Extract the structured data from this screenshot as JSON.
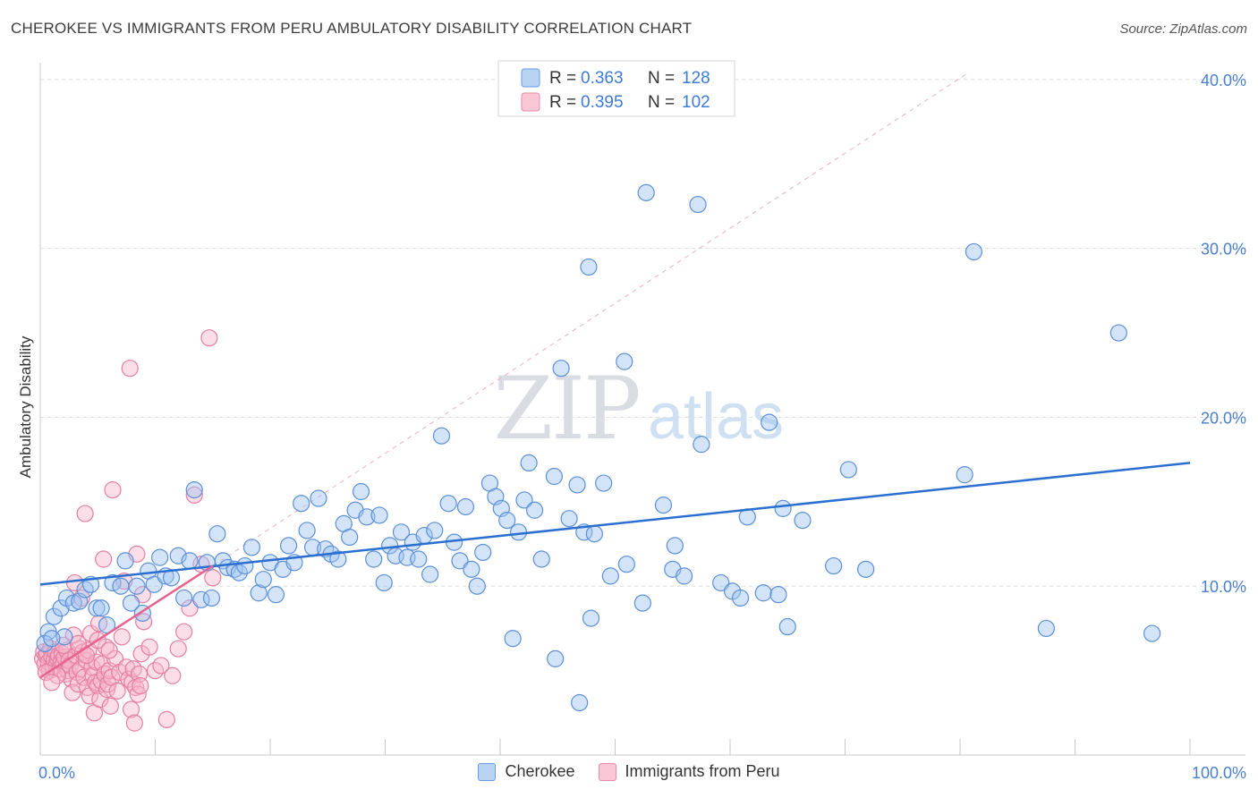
{
  "title": "CHEROKEE VS IMMIGRANTS FROM PERU AMBULATORY DISABILITY CORRELATION CHART",
  "source": "Source: ZipAtlas.com",
  "watermark": {
    "part1": "ZIP",
    "part2": "atlas"
  },
  "colors": {
    "blue_fill": "#9ec3ef",
    "blue_stroke": "#5b8fd8",
    "blue_line": "#2b6fd0",
    "pink_fill": "#f6b6cb",
    "pink_stroke": "#e67ea0",
    "pink_line": "#e8628e",
    "axis_text": "#4a7fcc"
  },
  "legend_top": {
    "rows": [
      {
        "r_label": "R =",
        "r_value": "0.363",
        "n_label": "N =",
        "n_value": "128"
      },
      {
        "r_label": "R =",
        "r_value": "0.395",
        "n_label": "N =",
        "n_value": "102"
      }
    ]
  },
  "legend_bottom": [
    "Cherokee",
    "Immigrants from Peru"
  ],
  "chart_data": {
    "type": "scatter",
    "title": "CHEROKEE VS IMMIGRANTS FROM PERU AMBULATORY DISABILITY CORRELATION CHART",
    "xlabel": "",
    "ylabel": "Ambulatory Disability",
    "xlim": [
      0,
      100
    ],
    "ylim": [
      0,
      41
    ],
    "x_tick_labels": [
      "0.0%",
      "100.0%"
    ],
    "y_ticks": [
      10,
      20,
      30,
      40
    ],
    "y_tick_labels": [
      "10.0%",
      "20.0%",
      "30.0%",
      "40.0%"
    ],
    "grid": true,
    "legend_position": "top-center",
    "series": [
      {
        "name": "Cherokee",
        "r": 0.363,
        "n": 128,
        "trend": {
          "x": [
            0,
            100
          ],
          "y": [
            10.1,
            17.3
          ]
        },
        "points": [
          [
            0.7,
            7.3
          ],
          [
            1.2,
            8.2
          ],
          [
            1.8,
            8.7
          ],
          [
            2.3,
            9.3
          ],
          [
            2.9,
            9.0
          ],
          [
            3.4,
            9.1
          ],
          [
            3.9,
            9.8
          ],
          [
            4.4,
            10.1
          ],
          [
            4.9,
            8.7
          ],
          [
            5.3,
            8.7
          ],
          [
            5.8,
            7.7
          ],
          [
            6.3,
            10.2
          ],
          [
            7.0,
            10.0
          ],
          [
            7.4,
            11.5
          ],
          [
            7.9,
            9.0
          ],
          [
            8.4,
            10.0
          ],
          [
            8.9,
            8.4
          ],
          [
            9.4,
            10.9
          ],
          [
            9.9,
            10.1
          ],
          [
            10.4,
            11.7
          ],
          [
            10.9,
            10.6
          ],
          [
            11.4,
            10.5
          ],
          [
            12.0,
            11.8
          ],
          [
            12.5,
            9.3
          ],
          [
            13.0,
            11.5
          ],
          [
            13.4,
            15.7
          ],
          [
            14.0,
            9.2
          ],
          [
            14.5,
            11.4
          ],
          [
            14.9,
            9.3
          ],
          [
            15.4,
            13.1
          ],
          [
            15.9,
            11.5
          ],
          [
            16.3,
            11.1
          ],
          [
            16.9,
            11.0
          ],
          [
            17.3,
            10.8
          ],
          [
            17.8,
            11.2
          ],
          [
            18.4,
            12.3
          ],
          [
            19.0,
            9.6
          ],
          [
            19.4,
            10.4
          ],
          [
            20.0,
            11.4
          ],
          [
            20.5,
            9.5
          ],
          [
            21.1,
            11.0
          ],
          [
            21.6,
            12.4
          ],
          [
            22.1,
            11.4
          ],
          [
            22.7,
            14.9
          ],
          [
            23.2,
            13.3
          ],
          [
            23.7,
            12.3
          ],
          [
            24.2,
            15.2
          ],
          [
            24.8,
            12.2
          ],
          [
            25.3,
            11.9
          ],
          [
            25.9,
            11.6
          ],
          [
            26.4,
            13.7
          ],
          [
            26.9,
            12.9
          ],
          [
            27.4,
            14.5
          ],
          [
            27.9,
            15.6
          ],
          [
            28.4,
            14.1
          ],
          [
            29.0,
            11.6
          ],
          [
            29.5,
            14.2
          ],
          [
            29.9,
            10.2
          ],
          [
            30.4,
            12.4
          ],
          [
            30.9,
            11.8
          ],
          [
            31.4,
            13.2
          ],
          [
            31.9,
            11.7
          ],
          [
            32.4,
            12.6
          ],
          [
            32.9,
            11.6
          ],
          [
            33.4,
            13.0
          ],
          [
            33.9,
            10.7
          ],
          [
            34.3,
            13.3
          ],
          [
            34.9,
            18.9
          ],
          [
            35.5,
            14.9
          ],
          [
            36.0,
            12.6
          ],
          [
            36.5,
            11.5
          ],
          [
            37.0,
            14.7
          ],
          [
            37.5,
            11.0
          ],
          [
            38.0,
            10.0
          ],
          [
            38.5,
            12.0
          ],
          [
            39.1,
            16.1
          ],
          [
            39.6,
            15.3
          ],
          [
            40.1,
            14.6
          ],
          [
            40.6,
            13.9
          ],
          [
            41.1,
            6.9
          ],
          [
            41.6,
            13.2
          ],
          [
            42.1,
            15.1
          ],
          [
            42.5,
            17.3
          ],
          [
            43.0,
            14.5
          ],
          [
            43.6,
            11.6
          ],
          [
            44.7,
            16.5
          ],
          [
            44.8,
            5.7
          ],
          [
            45.3,
            22.9
          ],
          [
            46.0,
            14.0
          ],
          [
            46.7,
            16.0
          ],
          [
            46.9,
            3.1
          ],
          [
            47.3,
            13.2
          ],
          [
            47.7,
            28.9
          ],
          [
            47.9,
            8.1
          ],
          [
            48.2,
            13.1
          ],
          [
            49.0,
            16.1
          ],
          [
            49.6,
            10.6
          ],
          [
            50.8,
            23.3
          ],
          [
            51.0,
            11.3
          ],
          [
            52.4,
            9.0
          ],
          [
            52.7,
            33.3
          ],
          [
            54.2,
            14.8
          ],
          [
            55.0,
            11.0
          ],
          [
            55.2,
            12.4
          ],
          [
            56.0,
            10.6
          ],
          [
            57.2,
            32.6
          ],
          [
            57.5,
            18.4
          ],
          [
            59.2,
            10.2
          ],
          [
            60.2,
            9.7
          ],
          [
            60.9,
            9.3
          ],
          [
            61.5,
            14.1
          ],
          [
            62.9,
            9.6
          ],
          [
            63.4,
            19.7
          ],
          [
            64.2,
            9.5
          ],
          [
            64.6,
            14.6
          ],
          [
            65.0,
            7.6
          ],
          [
            66.3,
            13.9
          ],
          [
            69.0,
            11.2
          ],
          [
            70.3,
            16.9
          ],
          [
            71.8,
            11.0
          ],
          [
            80.4,
            16.6
          ],
          [
            81.2,
            29.8
          ],
          [
            87.5,
            7.5
          ],
          [
            93.8,
            25.0
          ],
          [
            96.7,
            7.2
          ],
          [
            0.4,
            6.6
          ],
          [
            2.1,
            7.0
          ],
          [
            1.0,
            6.9
          ]
        ]
      },
      {
        "name": "Immigrants from Peru",
        "r": 0.395,
        "n": 102,
        "trend": {
          "x": [
            0,
            15
          ],
          "y": [
            4.6,
            11.2
          ]
        },
        "points": [
          [
            0.2,
            5.7
          ],
          [
            0.3,
            6.1
          ],
          [
            0.4,
            5.4
          ],
          [
            0.5,
            5.9
          ],
          [
            0.6,
            6.0
          ],
          [
            0.7,
            5.5
          ],
          [
            0.8,
            5.0
          ],
          [
            0.9,
            6.3
          ],
          [
            1.0,
            5.8
          ],
          [
            1.1,
            5.2
          ],
          [
            1.2,
            5.6
          ],
          [
            1.3,
            6.1
          ],
          [
            1.4,
            5.3
          ],
          [
            1.5,
            5.7
          ],
          [
            1.6,
            5.9
          ],
          [
            1.7,
            5.1
          ],
          [
            1.8,
            5.5
          ],
          [
            1.9,
            6.0
          ],
          [
            2.0,
            5.4
          ],
          [
            2.1,
            5.8
          ],
          [
            2.2,
            4.8
          ],
          [
            2.3,
            6.2
          ],
          [
            2.4,
            5.0
          ],
          [
            2.5,
            5.6
          ],
          [
            2.6,
            5.3
          ],
          [
            2.7,
            4.5
          ],
          [
            2.8,
            3.7
          ],
          [
            2.9,
            7.1
          ],
          [
            3.0,
            10.2
          ],
          [
            3.1,
            5.9
          ],
          [
            3.2,
            4.9
          ],
          [
            3.3,
            4.2
          ],
          [
            3.4,
            6.3
          ],
          [
            3.5,
            5.1
          ],
          [
            3.6,
            9.3
          ],
          [
            3.7,
            6.1
          ],
          [
            3.8,
            4.6
          ],
          [
            3.9,
            14.3
          ],
          [
            4.0,
            5.6
          ],
          [
            4.1,
            4.0
          ],
          [
            4.2,
            6.2
          ],
          [
            4.3,
            3.5
          ],
          [
            4.4,
            7.2
          ],
          [
            4.5,
            5.2
          ],
          [
            4.6,
            4.7
          ],
          [
            4.7,
            2.5
          ],
          [
            4.8,
            4.3
          ],
          [
            4.9,
            5.5
          ],
          [
            5.0,
            4.1
          ],
          [
            5.1,
            7.8
          ],
          [
            5.2,
            3.3
          ],
          [
            5.3,
            4.4
          ],
          [
            5.4,
            5.4
          ],
          [
            5.5,
            11.6
          ],
          [
            5.6,
            4.8
          ],
          [
            5.7,
            6.4
          ],
          [
            5.8,
            3.9
          ],
          [
            5.9,
            4.2
          ],
          [
            6.0,
            5.0
          ],
          [
            6.1,
            2.9
          ],
          [
            6.2,
            4.6
          ],
          [
            6.3,
            15.7
          ],
          [
            6.5,
            5.7
          ],
          [
            6.7,
            3.8
          ],
          [
            6.9,
            4.9
          ],
          [
            7.1,
            7.0
          ],
          [
            7.3,
            10.3
          ],
          [
            7.5,
            5.2
          ],
          [
            7.7,
            4.5
          ],
          [
            7.8,
            22.9
          ],
          [
            7.9,
            2.7
          ],
          [
            8.0,
            4.3
          ],
          [
            8.1,
            5.1
          ],
          [
            8.2,
            1.9
          ],
          [
            8.3,
            4.0
          ],
          [
            8.4,
            11.9
          ],
          [
            8.5,
            3.6
          ],
          [
            8.6,
            4.8
          ],
          [
            8.7,
            4.1
          ],
          [
            8.8,
            6.0
          ],
          [
            8.9,
            9.5
          ],
          [
            9.0,
            7.9
          ],
          [
            9.5,
            6.4
          ],
          [
            10.0,
            5.0
          ],
          [
            10.5,
            5.3
          ],
          [
            11.0,
            2.1
          ],
          [
            11.5,
            4.7
          ],
          [
            12.0,
            6.3
          ],
          [
            12.5,
            7.3
          ],
          [
            13.0,
            8.7
          ],
          [
            13.4,
            15.4
          ],
          [
            14.0,
            11.3
          ],
          [
            14.7,
            24.7
          ],
          [
            15.0,
            10.5
          ],
          [
            1.5,
            4.7
          ],
          [
            2.0,
            6.5
          ],
          [
            0.5,
            4.9
          ],
          [
            1.0,
            4.3
          ],
          [
            3.3,
            6.6
          ],
          [
            4.0,
            5.9
          ],
          [
            5.0,
            6.8
          ],
          [
            6.0,
            6.2
          ]
        ]
      }
    ]
  }
}
